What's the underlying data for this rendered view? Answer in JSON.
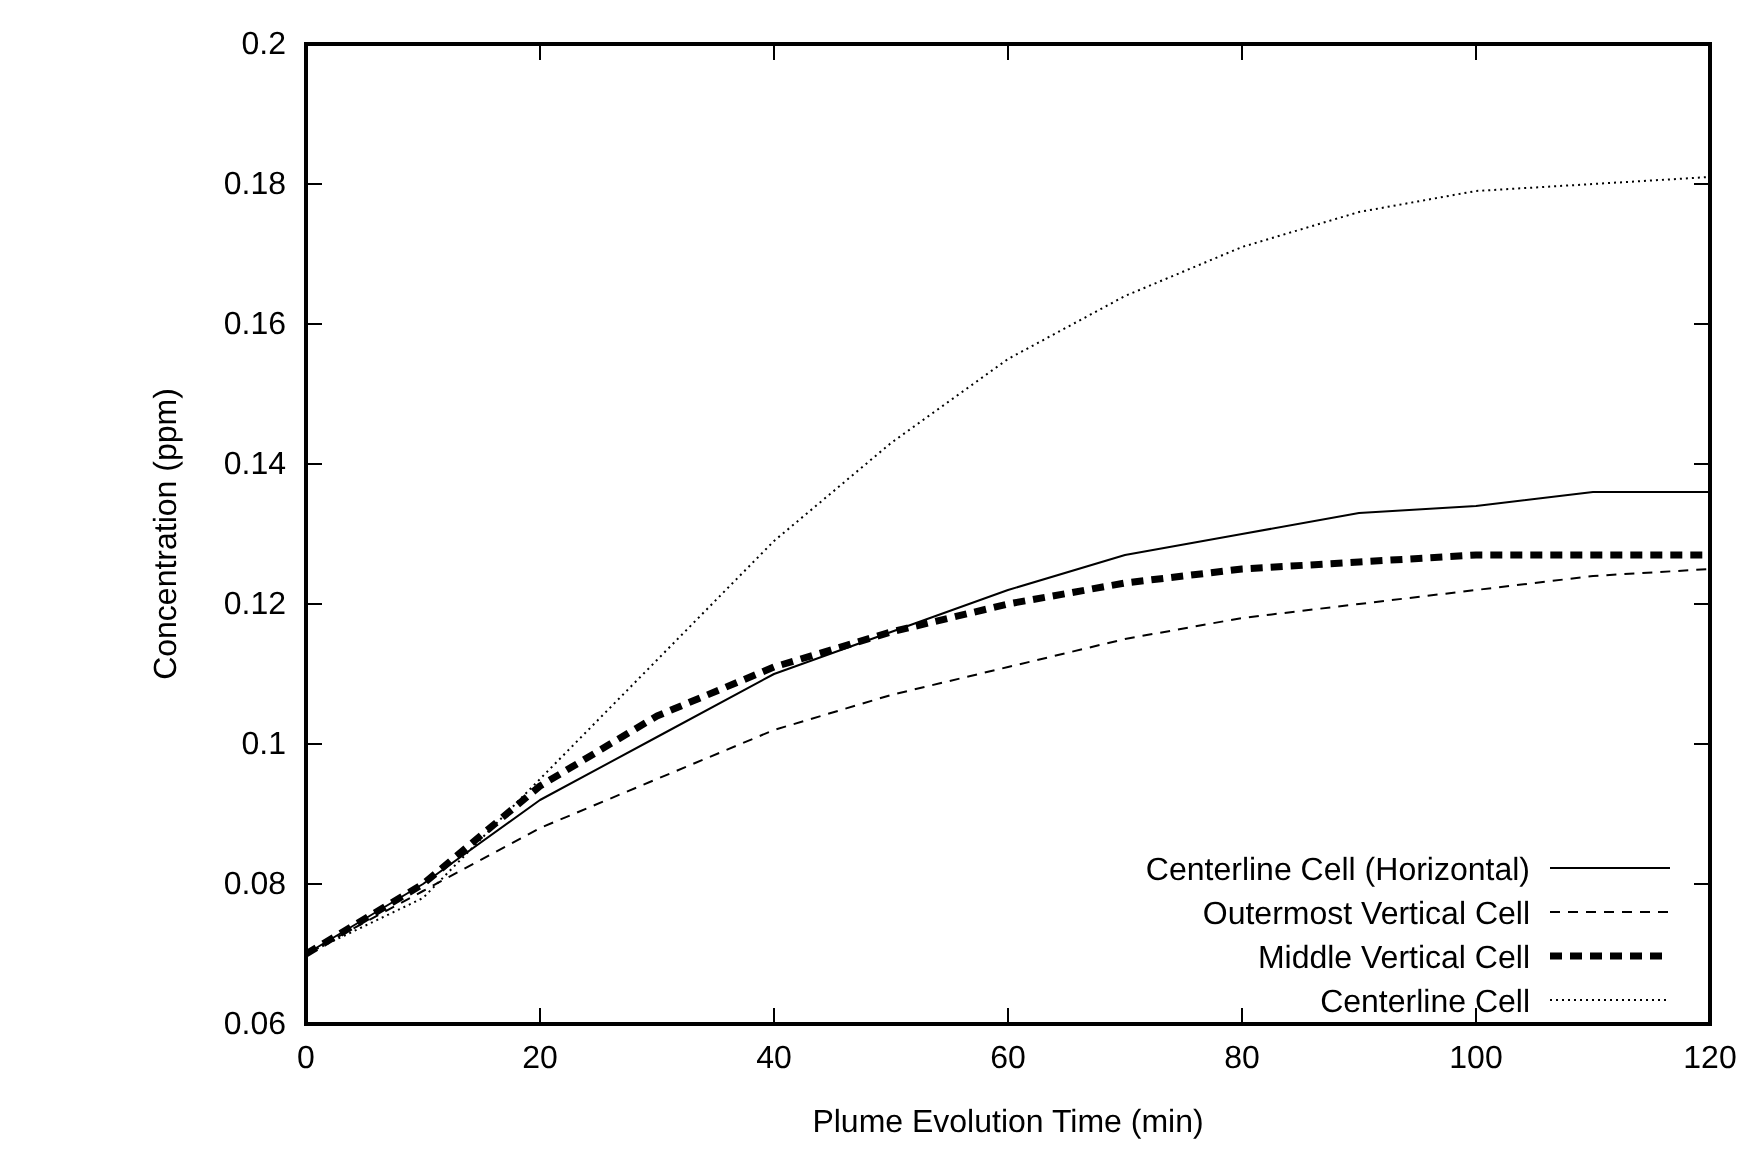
{
  "chart_data": {
    "type": "line",
    "xlabel": "Plume Evolution Time (min)",
    "ylabel": "Concentration (ppm)",
    "x": [
      0,
      10,
      20,
      30,
      40,
      50,
      60,
      70,
      80,
      90,
      100,
      110,
      120
    ],
    "xlim": [
      0,
      120
    ],
    "xticks": [
      0,
      20,
      40,
      60,
      80,
      100,
      120
    ],
    "ylim": [
      0.06,
      0.2
    ],
    "yticks": [
      0.06,
      0.08,
      0.1,
      0.12,
      0.14,
      0.16,
      0.18,
      0.2
    ],
    "grid": false,
    "legend": "bottom right",
    "series": [
      {
        "name": "Centerline Cell (Horizontal)",
        "color": "#000000",
        "line_style": "solid",
        "values": [
          0.07,
          0.08,
          0.092,
          0.101,
          0.11,
          0.116,
          0.122,
          0.127,
          0.13,
          0.133,
          0.134,
          0.136,
          0.136
        ]
      },
      {
        "name": "Outermost Vertical Cell",
        "color": "#000000",
        "line_style": "dashed",
        "values": [
          0.07,
          0.079,
          0.088,
          0.095,
          0.102,
          0.107,
          0.111,
          0.115,
          0.118,
          0.12,
          0.122,
          0.124,
          0.125
        ]
      },
      {
        "name": "Middle Vertical Cell",
        "color": "#000000",
        "line_style": "dashed",
        "values": [
          0.07,
          0.08,
          0.094,
          0.104,
          0.111,
          0.116,
          0.12,
          0.123,
          0.125,
          0.126,
          0.127,
          0.127,
          0.127
        ]
      },
      {
        "name": "Centerline Cell",
        "color": "#000000",
        "line_style": "dotted",
        "values": [
          0.07,
          0.078,
          0.095,
          0.112,
          0.129,
          0.143,
          0.155,
          0.164,
          0.171,
          0.176,
          0.179,
          0.18,
          0.181
        ]
      }
    ]
  }
}
